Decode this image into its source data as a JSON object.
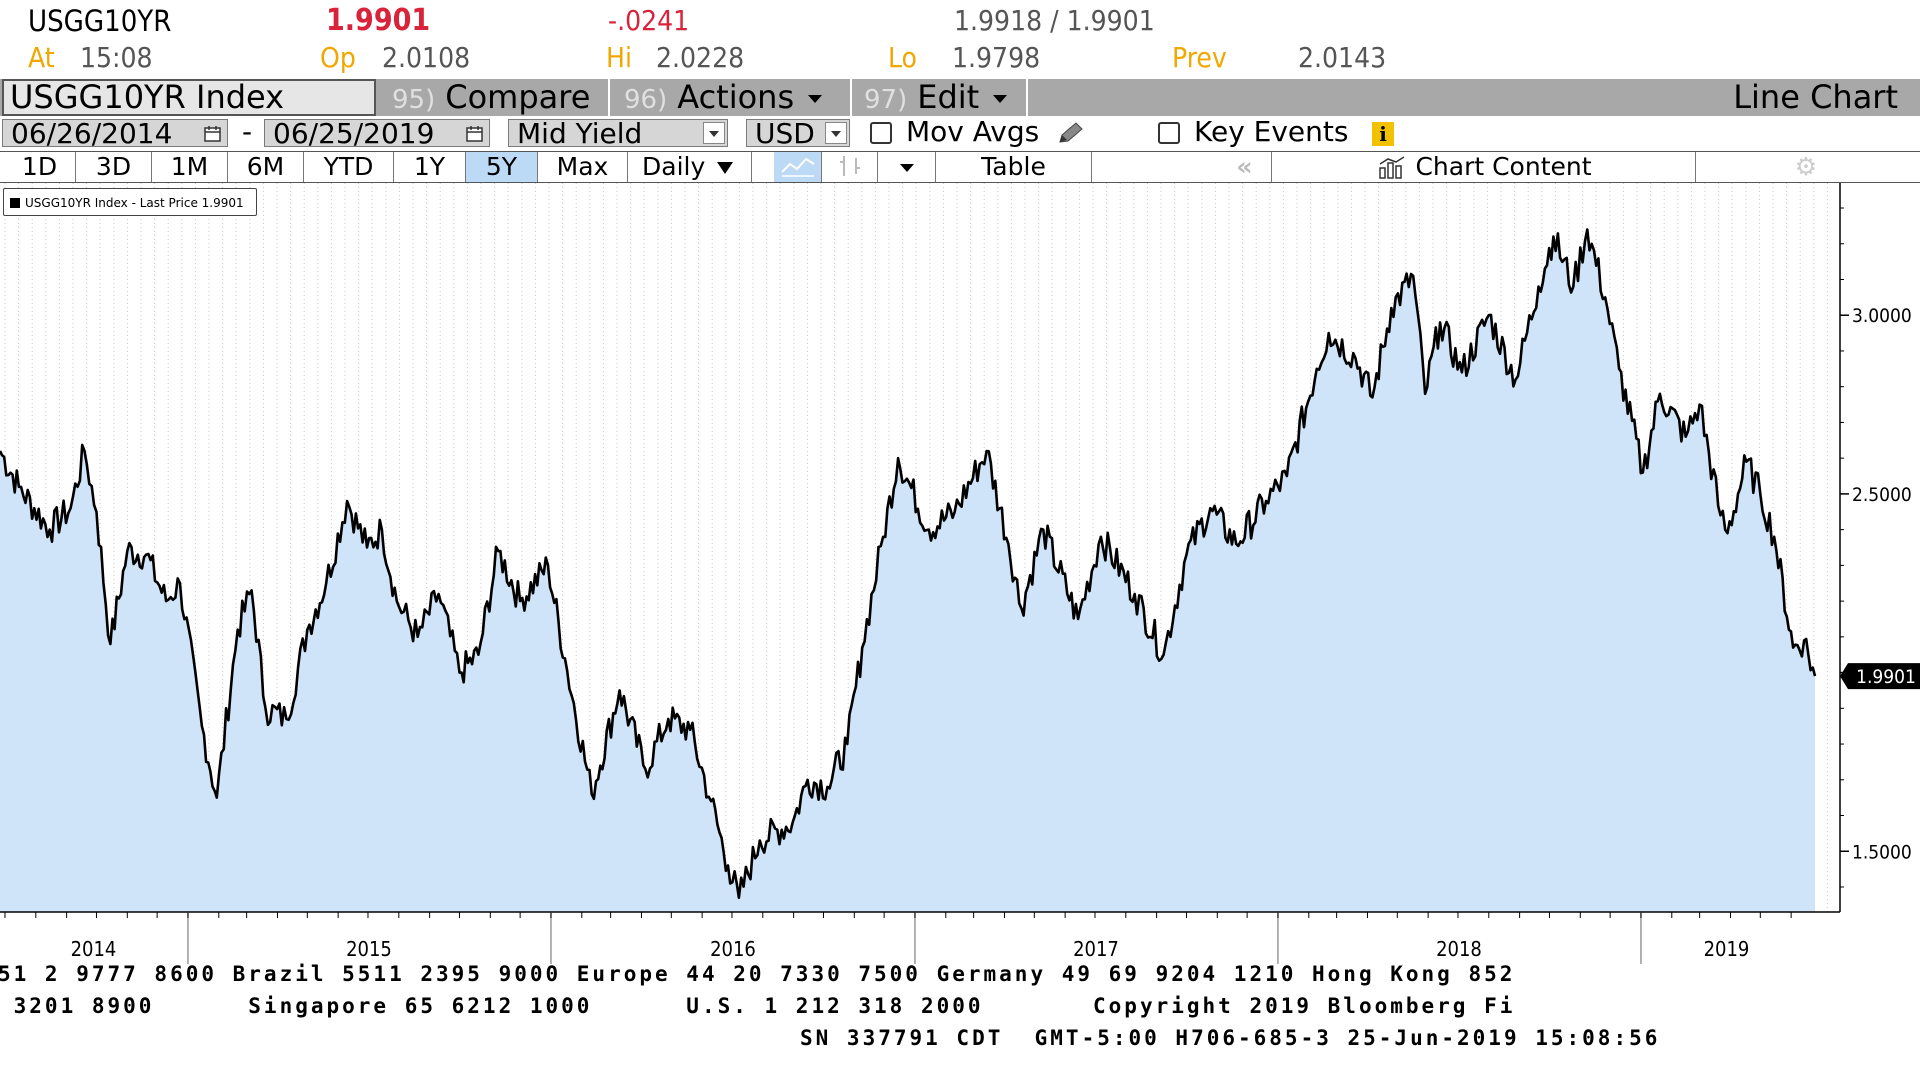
{
  "header": {
    "ticker": "USGG10YR",
    "last": "1.9901",
    "change": "-.0241",
    "bid_ask": "1.9918 / 1.9901",
    "at_label": "At",
    "at_value": "15:08",
    "open_label": "Op",
    "open_value": "2.0108",
    "high_label": "Hi",
    "high_value": "2.0228",
    "low_label": "Lo",
    "low_value": "1.9798",
    "prev_label": "Prev",
    "prev_value": "2.0143"
  },
  "title_bar": {
    "security": "USGG10YR Index",
    "compare_num": "95)",
    "compare": "Compare",
    "actions_num": "96)",
    "actions": "Actions",
    "edit_num": "97)",
    "edit": "Edit",
    "chart_type": "Line Chart"
  },
  "controls": {
    "start_date": "06/26/2014",
    "dash": "-",
    "end_date": "06/25/2019",
    "yield_type": "Mid Yield",
    "currency": "USD",
    "mov_avgs": "Mov Avgs",
    "key_events": "Key Events"
  },
  "toolbar": {
    "periods": [
      "1D",
      "3D",
      "1M",
      "6M",
      "YTD",
      "1Y",
      "5Y",
      "Max"
    ],
    "selected_period": "5Y",
    "frequency": "Daily",
    "table": "Table",
    "chart_content": "Chart Content"
  },
  "legend": {
    "label": "USGG10YR Index - Last Price 1.9901"
  },
  "footer": {
    "line1": "51 2 9777 8600 Brazil 5511 2395 9000 Europe 44 20 7330 7500 Germany 49 69 9204 1210 Hong Kong 852",
    "line2": " 3201 8900      Singapore 65 6212 1000      U.S. 1 212 318 2000       Copyright 2019 Bloomberg Fi",
    "line3": "SN 337791 CDT  GMT-5:00 H706-685-3 25-Jun-2019 15:08:56"
  },
  "colors": {
    "fill": "#cfe4f8",
    "line": "#000000",
    "negative": "#d9233a",
    "label": "#f0a800",
    "title_bar": "#a8a8a8"
  },
  "chart_data": {
    "type": "area",
    "x_axis": "date",
    "ylim": [
      1.33,
      3.37
    ],
    "y_ticks": [
      1.5,
      2.5,
      3.0
    ],
    "y_tick_labels": [
      "1.5000",
      "2.5000",
      "3.0000"
    ],
    "x_tick_labels": [
      "2014",
      "2015",
      "2016",
      "2017",
      "2018",
      "2019"
    ],
    "last_value_label": "1.9901",
    "grid": "vertical dotted",
    "legend_position": "top-left",
    "series": [
      {
        "name": "USGG10YR Index - Last Price",
        "points": [
          [
            "2014-06-26",
            2.62
          ],
          [
            "2014-07-15",
            2.52
          ],
          [
            "2014-08-15",
            2.4
          ],
          [
            "2014-09-05",
            2.46
          ],
          [
            "2014-09-19",
            2.62
          ],
          [
            "2014-10-01",
            2.45
          ],
          [
            "2014-10-15",
            2.08
          ],
          [
            "2014-11-01",
            2.34
          ],
          [
            "2014-11-20",
            2.33
          ],
          [
            "2014-12-10",
            2.2
          ],
          [
            "2014-12-24",
            2.25
          ],
          [
            "2015-01-15",
            1.85
          ],
          [
            "2015-01-30",
            1.65
          ],
          [
            "2015-02-20",
            2.12
          ],
          [
            "2015-03-06",
            2.23
          ],
          [
            "2015-03-20",
            1.9
          ],
          [
            "2015-04-10",
            1.87
          ],
          [
            "2015-05-01",
            2.12
          ],
          [
            "2015-05-20",
            2.25
          ],
          [
            "2015-06-10",
            2.48
          ],
          [
            "2015-06-30",
            2.35
          ],
          [
            "2015-07-15",
            2.4
          ],
          [
            "2015-07-30",
            2.2
          ],
          [
            "2015-08-20",
            2.1
          ],
          [
            "2015-09-10",
            2.22
          ],
          [
            "2015-10-01",
            2.0
          ],
          [
            "2015-10-20",
            2.05
          ],
          [
            "2015-11-09",
            2.34
          ],
          [
            "2015-12-01",
            2.2
          ],
          [
            "2015-12-29",
            2.3
          ],
          [
            "2016-01-15",
            2.04
          ],
          [
            "2016-02-11",
            1.66
          ],
          [
            "2016-03-10",
            1.95
          ],
          [
            "2016-04-05",
            1.73
          ],
          [
            "2016-04-28",
            1.87
          ],
          [
            "2016-05-20",
            1.84
          ],
          [
            "2016-06-10",
            1.64
          ],
          [
            "2016-06-27",
            1.46
          ],
          [
            "2016-07-08",
            1.37
          ],
          [
            "2016-07-29",
            1.53
          ],
          [
            "2016-08-31",
            1.58
          ],
          [
            "2016-09-15",
            1.7
          ],
          [
            "2016-10-05",
            1.68
          ],
          [
            "2016-10-25",
            1.8
          ],
          [
            "2016-11-09",
            2.07
          ],
          [
            "2016-11-30",
            2.38
          ],
          [
            "2016-12-15",
            2.6
          ],
          [
            "2017-01-15",
            2.4
          ],
          [
            "2017-02-10",
            2.45
          ],
          [
            "2017-03-14",
            2.62
          ],
          [
            "2017-04-05",
            2.36
          ],
          [
            "2017-04-18",
            2.18
          ],
          [
            "2017-05-10",
            2.4
          ],
          [
            "2017-06-14",
            2.15
          ],
          [
            "2017-07-07",
            2.38
          ],
          [
            "2017-08-10",
            2.22
          ],
          [
            "2017-09-08",
            2.05
          ],
          [
            "2017-10-01",
            2.33
          ],
          [
            "2017-10-25",
            2.46
          ],
          [
            "2017-11-20",
            2.36
          ],
          [
            "2017-12-20",
            2.48
          ],
          [
            "2018-01-10",
            2.55
          ],
          [
            "2018-02-09",
            2.85
          ],
          [
            "2018-02-21",
            2.95
          ],
          [
            "2018-03-20",
            2.88
          ],
          [
            "2018-04-06",
            2.77
          ],
          [
            "2018-04-25",
            3.02
          ],
          [
            "2018-05-17",
            3.11
          ],
          [
            "2018-05-29",
            2.78
          ],
          [
            "2018-06-13",
            2.98
          ],
          [
            "2018-07-05",
            2.84
          ],
          [
            "2018-08-01",
            3.0
          ],
          [
            "2018-08-28",
            2.82
          ],
          [
            "2018-09-20",
            3.08
          ],
          [
            "2018-10-05",
            3.22
          ],
          [
            "2018-10-25",
            3.08
          ],
          [
            "2018-11-08",
            3.24
          ],
          [
            "2018-11-26",
            3.05
          ],
          [
            "2018-12-10",
            2.85
          ],
          [
            "2019-01-03",
            2.56
          ],
          [
            "2019-01-20",
            2.78
          ],
          [
            "2019-02-15",
            2.66
          ],
          [
            "2019-03-01",
            2.75
          ],
          [
            "2019-03-22",
            2.44
          ],
          [
            "2019-03-29",
            2.39
          ],
          [
            "2019-04-17",
            2.59
          ],
          [
            "2019-05-01",
            2.5
          ],
          [
            "2019-05-15",
            2.38
          ],
          [
            "2019-06-03",
            2.07
          ],
          [
            "2019-06-14",
            2.09
          ],
          [
            "2019-06-25",
            1.99
          ]
        ]
      }
    ]
  }
}
